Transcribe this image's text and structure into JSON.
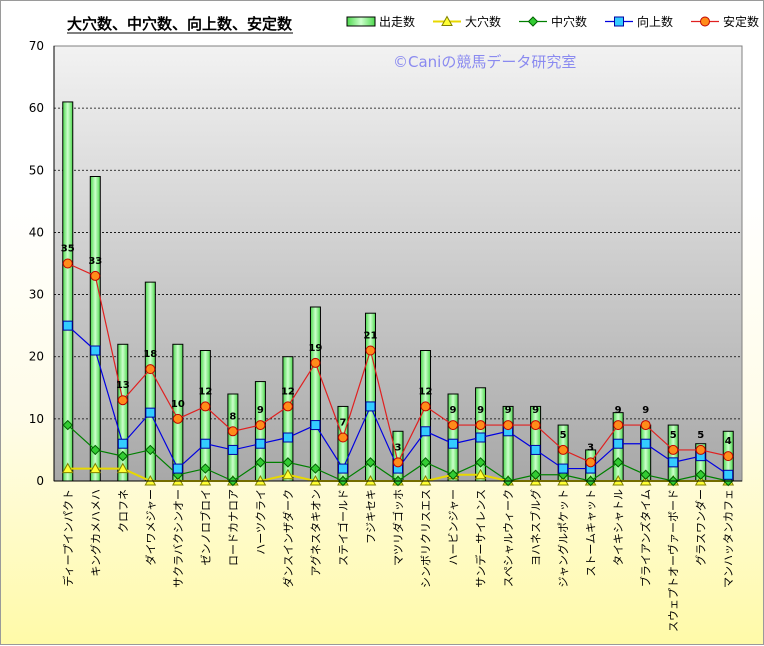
{
  "chart_data": {
    "type": "bar",
    "title": "大穴数、中穴数、向上数、安定数",
    "watermark": "©Caniの競馬データ研究室",
    "ylim": [
      0,
      70
    ],
    "yticks": [
      0,
      10,
      20,
      30,
      40,
      50,
      60,
      70
    ],
    "grid": true,
    "legend_position": "top-right",
    "categories": [
      "ディープインパクト",
      "キングカメハメハ",
      "クロフネ",
      "ダイワメジャー",
      "サクラバクシンオー",
      "ゼンノロブロイ",
      "ロードカナロア",
      "ハーツクライ",
      "ダンスインザダーク",
      "アグネスタキオン",
      "ステイゴールド",
      "フジキセキ",
      "マツリダゴッホ",
      "シンボリクリスエス",
      "ハービンジャー",
      "サンデーサイレンス",
      "スペシャルウィーク",
      "ヨハネスブルグ",
      "ジャングルポケット",
      "ストームキャット",
      "タイキシャトル",
      "ブライアンズタイム",
      "スウェプトオーヴァーボード",
      "グラスワンダー",
      "マンハッタンカフェ"
    ],
    "series": [
      {
        "name": "出走数",
        "kind": "bar",
        "color": "#7CFC7C",
        "values": [
          61,
          49,
          22,
          32,
          22,
          21,
          14,
          16,
          20,
          28,
          12,
          27,
          8,
          21,
          14,
          15,
          12,
          12,
          9,
          5,
          11,
          9,
          9,
          6,
          8
        ]
      },
      {
        "name": "大穴数",
        "kind": "line",
        "color": "#E8D800",
        "marker": "triangle",
        "values": [
          2,
          2,
          2,
          0,
          0,
          0,
          0,
          0,
          1,
          0,
          0,
          0,
          0,
          0,
          1,
          1,
          0,
          0,
          0,
          0,
          0,
          0,
          0,
          0,
          0
        ]
      },
      {
        "name": "中穴数",
        "kind": "line",
        "color": "#008000",
        "marker": "diamond",
        "values": [
          9,
          5,
          4,
          5,
          1,
          2,
          0,
          3,
          3,
          2,
          0,
          3,
          0,
          3,
          1,
          3,
          0,
          1,
          1,
          0,
          3,
          1,
          0,
          1,
          0
        ]
      },
      {
        "name": "向上数",
        "kind": "line",
        "color": "#0000E0",
        "marker": "square",
        "values": [
          25,
          21,
          6,
          11,
          2,
          6,
          5,
          6,
          7,
          9,
          2,
          12,
          2,
          8,
          6,
          7,
          8,
          5,
          2,
          2,
          6,
          6,
          3,
          4,
          1
        ]
      },
      {
        "name": "安定数",
        "kind": "line",
        "color": "#E02020",
        "marker": "circle",
        "values": [
          35,
          33,
          13,
          18,
          10,
          12,
          8,
          9,
          12,
          19,
          7,
          21,
          3,
          12,
          9,
          9,
          9,
          9,
          5,
          3,
          9,
          9,
          5,
          5,
          4
        ]
      }
    ],
    "data_labels_series": "安定数"
  }
}
